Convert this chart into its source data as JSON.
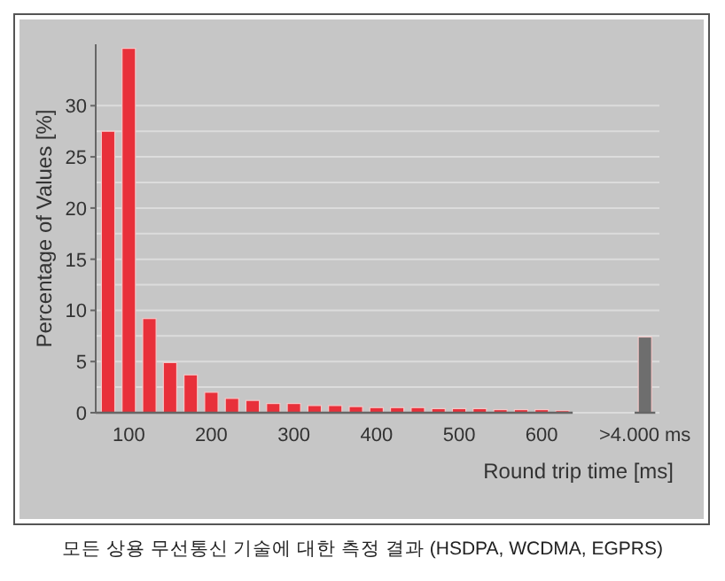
{
  "chart_data": {
    "type": "bar",
    "xlabel": "Round trip time [ms]",
    "ylabel": "Percentage of Values [%]",
    "categories": [
      null,
      "100",
      null,
      null,
      null,
      "200",
      null,
      null,
      null,
      "300",
      null,
      null,
      null,
      "400",
      null,
      null,
      null,
      "500",
      null,
      null,
      null,
      "600",
      null,
      null,
      null,
      null,
      ">4.000 ms"
    ],
    "values": [
      27.5,
      35.6,
      9.2,
      4.9,
      3.7,
      2.0,
      1.4,
      1.2,
      0.9,
      0.9,
      0.7,
      0.7,
      0.6,
      0.5,
      0.5,
      0.5,
      0.4,
      0.4,
      0.4,
      0.3,
      0.3,
      0.3,
      0.2,
      null,
      null,
      null,
      7.4
    ],
    "colors": [
      "#e8303a",
      "#e8303a",
      "#e8303a",
      "#e8303a",
      "#e8303a",
      "#e8303a",
      "#e8303a",
      "#e8303a",
      "#e8303a",
      "#e8303a",
      "#e8303a",
      "#e8303a",
      "#e8303a",
      "#e8303a",
      "#e8303a",
      "#e8303a",
      "#e8303a",
      "#e8303a",
      "#e8303a",
      "#e8303a",
      "#e8303a",
      "#e8303a",
      "#e8303a",
      null,
      null,
      null,
      "#6e6e6e"
    ],
    "ylim": [
      0,
      36
    ],
    "yticks": [
      0,
      {
        "value": 2.5,
        "label": null
      },
      5,
      {
        "value": 7.5,
        "label": null
      },
      10,
      {
        "value": 12.5,
        "label": null
      },
      15,
      {
        "value": 17.5,
        "label": null
      },
      20,
      {
        "value": 22.5,
        "label": null
      },
      25,
      {
        "value": 27.5,
        "label": null
      },
      30
    ],
    "grid": "y",
    "annotations": [
      "모든 상용 무선통신 기술에 대한 측정 결과 (HSDPA, WCDMA, EGPRS)"
    ]
  }
}
